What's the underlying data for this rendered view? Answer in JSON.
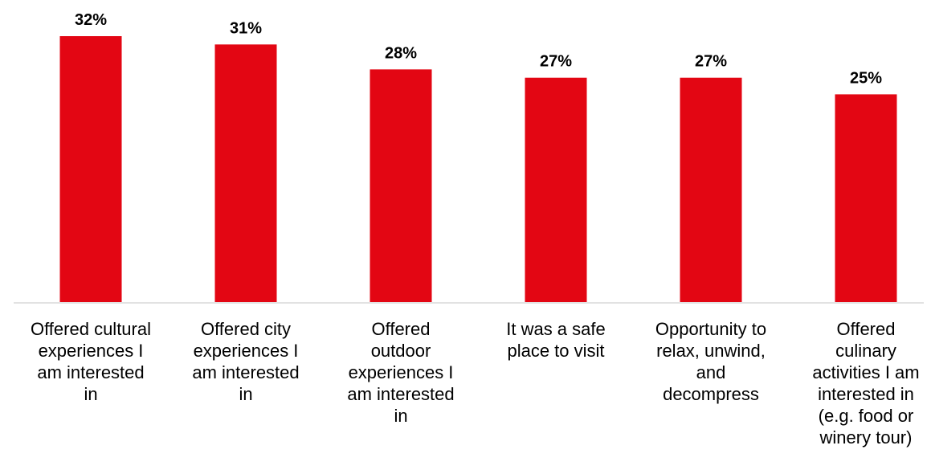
{
  "chart_data": {
    "type": "bar",
    "categories": [
      "Offered cultural\nexperiences I\nam interested\nin",
      "Offered city\nexperiences I\nam interested\nin",
      "Offered\noutdoor\nexperiences I\nam interested\nin",
      "It was a safe\nplace to visit",
      "Opportunity to\nrelax, unwind,\nand\ndecompress",
      "Offered\nculinary\nactivities I am\ninterested in\n(e.g. food or\nwinery tour)"
    ],
    "values": [
      32,
      31,
      28,
      27,
      27,
      25
    ],
    "value_labels": [
      "32%",
      "31%",
      "28%",
      "27%",
      "27%",
      "25%"
    ],
    "title": "",
    "xlabel": "",
    "ylabel": "",
    "ylim": [
      0,
      32
    ],
    "grid": false,
    "legend": "none",
    "colors": {
      "bar": "#e30613",
      "axis": "#d9d9d9"
    }
  }
}
